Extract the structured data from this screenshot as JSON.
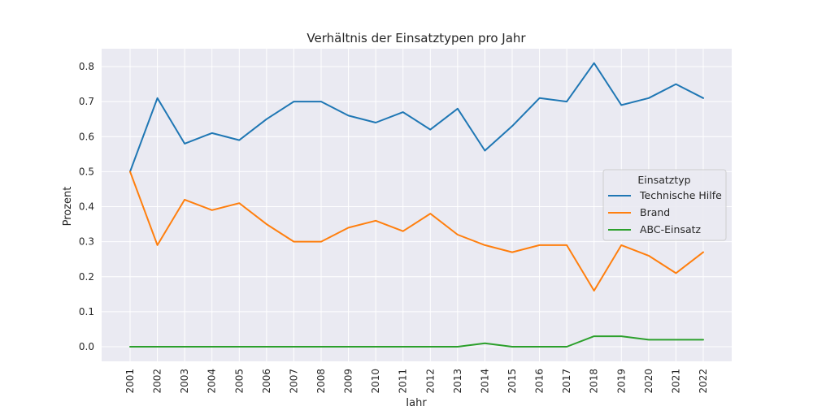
{
  "chart_data": {
    "type": "line",
    "title": "Verhältnis der Einsatztypen pro Jahr",
    "xlabel": "Jahr",
    "ylabel": "Prozent",
    "x": [
      "2001",
      "2002",
      "2003",
      "2004",
      "2005",
      "2006",
      "2007",
      "2008",
      "2009",
      "2010",
      "2011",
      "2012",
      "2013",
      "2014",
      "2015",
      "2016",
      "2017",
      "2018",
      "2019",
      "2020",
      "2021",
      "2022"
    ],
    "yticks": [
      "0.0",
      "0.1",
      "0.2",
      "0.3",
      "0.4",
      "0.5",
      "0.6",
      "0.7",
      "0.8"
    ],
    "ylim": [
      -0.04,
      0.85
    ],
    "grid": true,
    "legend": {
      "title": "Einsatztyp",
      "placement": "right-center"
    },
    "series": [
      {
        "name": "Technische Hilfe",
        "color": "#1f77b4",
        "values": [
          0.5,
          0.71,
          0.58,
          0.61,
          0.59,
          0.65,
          0.7,
          0.7,
          0.66,
          0.64,
          0.67,
          0.62,
          0.68,
          0.56,
          0.63,
          0.71,
          0.7,
          0.81,
          0.69,
          0.71,
          0.75,
          0.71
        ]
      },
      {
        "name": "Brand",
        "color": "#ff7f0e",
        "values": [
          0.5,
          0.29,
          0.42,
          0.39,
          0.41,
          0.35,
          0.3,
          0.3,
          0.34,
          0.36,
          0.33,
          0.38,
          0.32,
          0.29,
          0.27,
          0.29,
          0.29,
          0.16,
          0.29,
          0.26,
          0.21,
          0.27
        ]
      },
      {
        "name": "ABC-Einsatz",
        "color": "#2ca02c",
        "values": [
          0.0,
          0.0,
          0.0,
          0.0,
          0.0,
          0.0,
          0.0,
          0.0,
          0.0,
          0.0,
          0.0,
          0.0,
          0.0,
          0.01,
          0.0,
          0.0,
          0.0,
          0.03,
          0.03,
          0.02,
          0.02,
          0.02
        ]
      }
    ]
  }
}
